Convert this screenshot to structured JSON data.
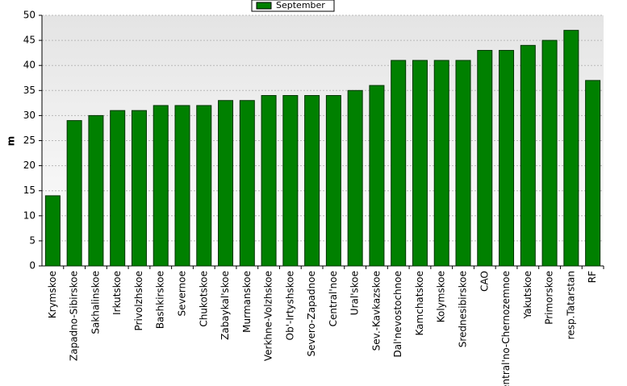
{
  "chart_data": {
    "type": "bar",
    "y_label": "m",
    "legend": "September",
    "legend_position": "top",
    "color": "#008000",
    "grid": true,
    "categories": [
      "Krymskoe",
      "Zapadno-Sibirskoe",
      "Sakhalinskoe",
      "Irkutskoe",
      "Privolzhskoe",
      "Bashkirskoe",
      "Severnoe",
      "Chukotskoe",
      "Zabaykal'skoe",
      "Murmanskoe",
      "Verkhne-Volzhskoe",
      "Ob'-Irtyshskoe",
      "Severo-Zapadnoe",
      "Central'noe",
      "Ural'skoe",
      "Sev.-Kavkazskoe",
      "Dal'nevostochnoe",
      "Kamchatskoe",
      "Kolymskoe",
      "Srednesibirskoe",
      "CAO",
      "Central'no-Chernozemnoe",
      "Yakutskoe",
      "Primorskoe",
      "resp.Tatarstan",
      "RF"
    ],
    "values": [
      14,
      29,
      30,
      31,
      31,
      32,
      32,
      32,
      33,
      33,
      34,
      34,
      34,
      34,
      35,
      36,
      41,
      41,
      41,
      41,
      43,
      43,
      44,
      45,
      47,
      37
    ],
    "ylim": [
      0,
      50
    ],
    "yticks": [
      0,
      5,
      10,
      15,
      20,
      25,
      30,
      35,
      40,
      45,
      50
    ]
  }
}
